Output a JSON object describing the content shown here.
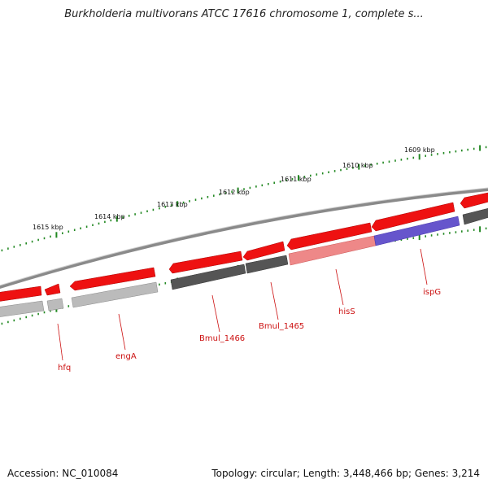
{
  "title": "Burkholderia multivorans ATCC 17616 chromosome 1, complete s...",
  "accession": "Accession: NC_010084",
  "stats": "Topology: circular; Length: 3,448,466 bp; Genes: 3,214",
  "colors": {
    "backbone": "#8a8a8a",
    "tick": "#228822",
    "red": "#ee1111",
    "dark_grey": "#555555",
    "light_grey": "#bbbbbb",
    "pink": "#ee8888",
    "blue": "#6655cc",
    "gene_label": "#cc1111"
  },
  "scale_labels": [
    "1609 kbp",
    "1610 kbp",
    "1611 kbp",
    "1612 kbp",
    "1613 kbp",
    "1614 kbp",
    "1615 kbp"
  ],
  "gene_labels": [
    "hfq",
    "engA",
    "Bmul_1466",
    "Bmul_1465",
    "hisS",
    "ispG"
  ]
}
